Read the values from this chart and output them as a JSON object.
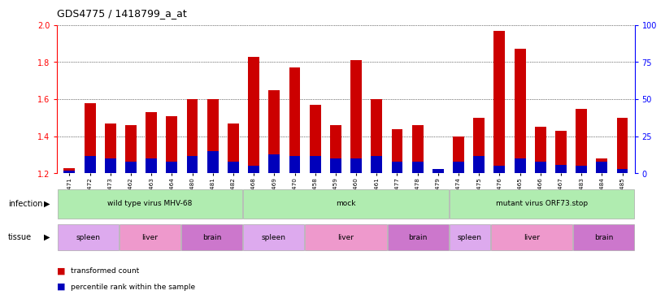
{
  "title": "GDS4775 / 1418799_a_at",
  "samples": [
    "GSM1243471",
    "GSM1243472",
    "GSM1243473",
    "GSM1243462",
    "GSM1243463",
    "GSM1243464",
    "GSM1243480",
    "GSM1243481",
    "GSM1243482",
    "GSM1243468",
    "GSM1243469",
    "GSM1243470",
    "GSM1243458",
    "GSM1243459",
    "GSM1243460",
    "GSM1243461",
    "GSM1243477",
    "GSM1243478",
    "GSM1243479",
    "GSM1243474",
    "GSM1243475",
    "GSM1243476",
    "GSM1243465",
    "GSM1243466",
    "GSM1243467",
    "GSM1243483",
    "GSM1243484",
    "GSM1243485"
  ],
  "transformed_count": [
    1.23,
    1.58,
    1.47,
    1.46,
    1.53,
    1.51,
    1.6,
    1.6,
    1.47,
    1.83,
    1.65,
    1.77,
    1.57,
    1.46,
    1.81,
    1.6,
    1.44,
    1.46,
    1.21,
    1.4,
    1.5,
    1.97,
    1.87,
    1.45,
    1.43,
    1.55,
    1.28,
    1.5
  ],
  "percentile_rank": [
    2,
    12,
    10,
    8,
    10,
    8,
    12,
    15,
    8,
    5,
    13,
    12,
    12,
    10,
    10,
    12,
    8,
    8,
    3,
    8,
    12,
    5,
    10,
    8,
    6,
    5,
    8,
    3
  ],
  "y_min": 1.2,
  "y_max": 2.0,
  "y_ticks_left": [
    1.2,
    1.4,
    1.6,
    1.8,
    2.0
  ],
  "y_ticks_right": [
    0,
    25,
    50,
    75,
    100
  ],
  "bar_color": "#cc0000",
  "percentile_color": "#0000bb",
  "bar_width": 0.55,
  "infection_labels": [
    {
      "label": "wild type virus MHV-68",
      "start": 0,
      "end": 9,
      "color": "#b0ecb0"
    },
    {
      "label": "mock",
      "start": 9,
      "end": 19,
      "color": "#b0ecb0"
    },
    {
      "label": "mutant virus ORF73.stop",
      "start": 19,
      "end": 28,
      "color": "#b0ecb0"
    }
  ],
  "tissue_labels": [
    {
      "label": "spleen",
      "start": 0,
      "end": 3,
      "color": "#ddaaee"
    },
    {
      "label": "liver",
      "start": 3,
      "end": 6,
      "color": "#ee99cc"
    },
    {
      "label": "brain",
      "start": 6,
      "end": 9,
      "color": "#cc77cc"
    },
    {
      "label": "spleen",
      "start": 9,
      "end": 12,
      "color": "#ddaaee"
    },
    {
      "label": "liver",
      "start": 12,
      "end": 16,
      "color": "#ee99cc"
    },
    {
      "label": "brain",
      "start": 16,
      "end": 19,
      "color": "#cc77cc"
    },
    {
      "label": "spleen",
      "start": 19,
      "end": 21,
      "color": "#ddaaee"
    },
    {
      "label": "liver",
      "start": 21,
      "end": 25,
      "color": "#ee99cc"
    },
    {
      "label": "brain",
      "start": 25,
      "end": 28,
      "color": "#cc77cc"
    }
  ]
}
